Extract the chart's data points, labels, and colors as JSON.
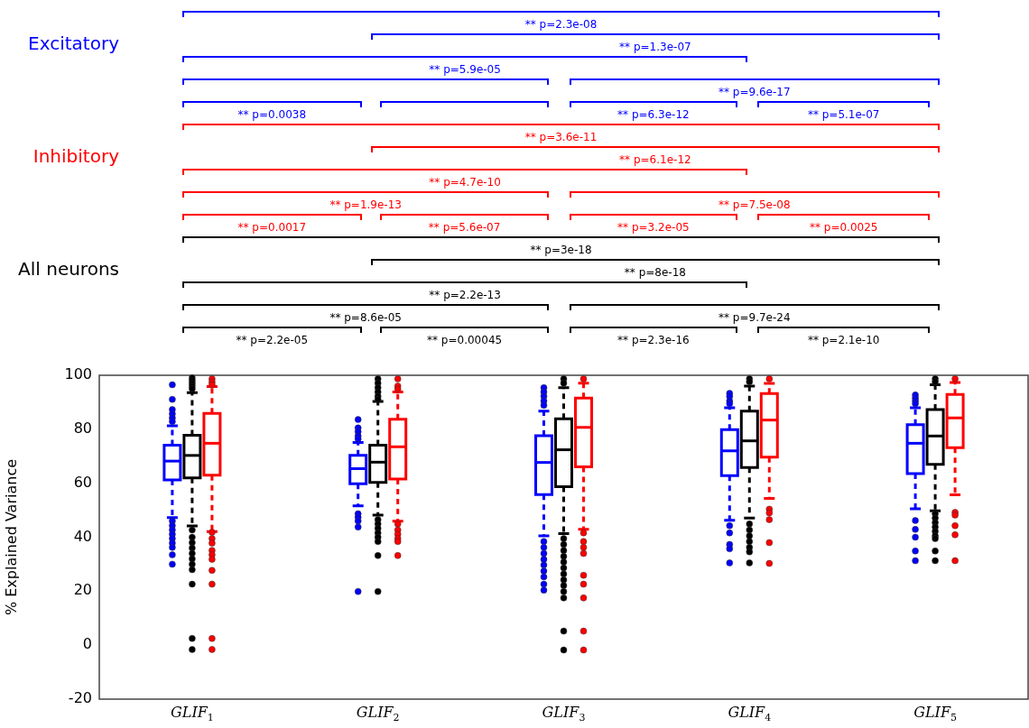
{
  "chart_data": {
    "type": "box",
    "ylabel": "% Explained Variance",
    "categories": [
      "GLIF$_{1}$",
      "GLIF$_{2}$",
      "GLIF$_{3}$",
      "GLIF$_{4}$",
      "GLIF$_{5}$"
    ],
    "ylim": [
      -20,
      100
    ],
    "yticks": [
      -20,
      0,
      20,
      40,
      60,
      80,
      100
    ],
    "grid": false,
    "line_style": "dashed",
    "series": [
      {
        "name": "Excitatory",
        "color": "#0000ff",
        "boxes": [
          {
            "low": 47.3,
            "q1": 61.2,
            "median": 68.2,
            "q3": 74.1,
            "high": 81.3,
            "outliers": [
              96.5,
              91.1,
              87.3,
              85.7,
              84.2,
              82.9,
              46,
              44.3,
              42.7,
              41.1,
              39.5,
              37.8,
              36.2,
              33.5,
              30
            ]
          },
          {
            "low": 51.6,
            "q1": 59.8,
            "median": 65.4,
            "q3": 70.3,
            "high": 75.1,
            "outliers": [
              83.6,
              80.5,
              79.1,
              77.5,
              76.4,
              48.7,
              47.4,
              46,
              43.8,
              19.9
            ]
          },
          {
            "low": 40.5,
            "q1": 55.8,
            "median": 67.7,
            "q3": 77.6,
            "high": 86.7,
            "outliers": [
              95.4,
              93.8,
              92.2,
              90.5,
              88.9,
              38.4,
              36.2,
              34,
              31.8,
              29.7,
              27.5,
              25.3,
              22.6,
              20.4
            ]
          },
          {
            "low": 46.3,
            "q1": 62.8,
            "median": 72,
            "q3": 79.9,
            "high": 88,
            "outliers": [
              93.3,
              92.2,
              90.5,
              89.5,
              44.3,
              41.6,
              37.3,
              35.7,
              30.5
            ]
          },
          {
            "low": 50.5,
            "q1": 63.6,
            "median": 74.8,
            "q3": 81.7,
            "high": 88,
            "outliers": [
              92.7,
              91.6,
              90.5,
              89.5,
              46.2,
              42.9,
              40,
              34.9,
              31.3
            ]
          }
        ]
      },
      {
        "name": "All neurons",
        "color": "#000000",
        "boxes": [
          {
            "low": 44.2,
            "q1": 62,
            "median": 70.3,
            "q3": 77.8,
            "high": 93.6,
            "outliers": [
              99,
              98,
              97,
              96,
              95,
              42.7,
              40,
              38,
              36,
              34,
              32,
              30,
              28,
              22.6,
              2.5,
              -1.6
            ]
          },
          {
            "low": 48.2,
            "q1": 60.3,
            "median": 67.8,
            "q3": 74.1,
            "high": 90.3,
            "outliers": [
              98.7,
              97.1,
              95.4,
              93.8,
              92.2,
              91.1,
              46.5,
              44.9,
              43.3,
              41.6,
              40,
              38.4,
              33.2,
              19.9
            ]
          },
          {
            "low": 41.3,
            "q1": 58.7,
            "median": 72.4,
            "q3": 83.9,
            "high": 95.4,
            "outliers": [
              98.7,
              97.1,
              39.5,
              37.3,
              35.1,
              32.9,
              30.8,
              28.6,
              26.4,
              24.2,
              22.1,
              19.9,
              17.5,
              5.2,
              -1.8
            ]
          },
          {
            "low": 47.1,
            "q1": 65.8,
            "median": 75.7,
            "q3": 86.7,
            "high": 96,
            "outliers": [
              98.7,
              97.6,
              44.9,
              42.7,
              40.5,
              38.4,
              36.2,
              34.6,
              30.5
            ]
          },
          {
            "low": 49.8,
            "q1": 67,
            "median": 77.5,
            "q3": 87.3,
            "high": 96.5,
            "outliers": [
              98.7,
              97.6,
              48.7,
              47.1,
              45.4,
              43.8,
              42.2,
              40.5,
              39.5,
              34.9,
              31.3
            ]
          }
        ]
      },
      {
        "name": "Inhibitory",
        "color": "#ff0000",
        "boxes": [
          {
            "low": 42.1,
            "q1": 63,
            "median": 74.8,
            "q3": 85.9,
            "high": 95.8,
            "outliers": [
              98.7,
              97.5,
              96.5,
              41.8,
              39.5,
              37.8,
              35.1,
              33.5,
              31.8,
              27.7,
              22.6,
              2.5,
              -1.6
            ]
          },
          {
            "low": 45.9,
            "q1": 61.6,
            "median": 73.5,
            "q3": 83.7,
            "high": 93.8,
            "outliers": [
              98.7,
              96,
              94.9,
              44.9,
              42.7,
              41.1,
              39.5,
              38.4,
              33.2
            ]
          },
          {
            "low": 42.9,
            "q1": 66.1,
            "median": 80.7,
            "q3": 91.6,
            "high": 97.1,
            "outliers": [
              98.7,
              41.6,
              38.4,
              36.2,
              34,
              25.9,
              22.6,
              17.5,
              5.2,
              -1.8
            ]
          },
          {
            "low": 54.4,
            "q1": 69.7,
            "median": 83.4,
            "q3": 93.2,
            "high": 97,
            "outliers": [
              98.7,
              50.4,
              49,
              46.5,
              38,
              30.3
            ]
          },
          {
            "low": 55.7,
            "q1": 73.2,
            "median": 84.2,
            "q3": 92.9,
            "high": 97.3,
            "outliers": [
              98.7,
              49.2,
              48.2,
              44.3,
              40.9,
              31.3
            ]
          }
        ]
      }
    ],
    "annotations": [
      "** p=2.3e-08",
      "** p=1.3e-07",
      "** p=5.9e-05",
      "** p=9.6e-17",
      "** p=0.0038",
      "** p=6.3e-12",
      "** p=5.1e-07",
      "** p=3.6e-11",
      "** p=6.1e-12",
      "** p=4.7e-10",
      "** p=1.9e-13",
      "** p=7.5e-08",
      "** p=0.0017",
      "** p=5.6e-07",
      "** p=3.2e-05",
      "** p=0.0025",
      "** p=3e-18",
      "** p=8e-18",
      "** p=2.2e-13",
      "** p=8.6e-05",
      "** p=9.7e-24",
      "** p=2.2e-05",
      "** p=0.00045",
      "** p=2.3e-16",
      "** p=2.1e-10"
    ]
  }
}
